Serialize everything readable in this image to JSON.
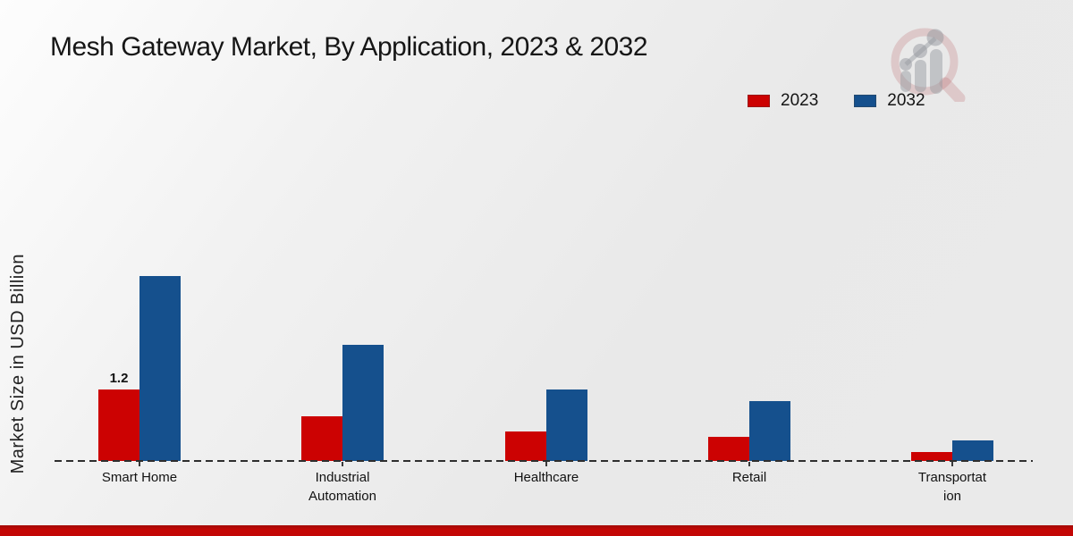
{
  "page": {
    "title": "Mesh Gateway Market, By Application, 2023 & 2032"
  },
  "y_axis": {
    "label": "Market Size in USD Billion"
  },
  "legend": {
    "items": [
      {
        "label": "2023",
        "color": "#cc0202"
      },
      {
        "label": "2032",
        "color": "#15508d"
      }
    ]
  },
  "colors": {
    "series_2023": "#cc0202",
    "series_2032": "#15508d",
    "footer_accent": "#c20605",
    "axis_dash": "#2e2e2e"
  },
  "watermark": {
    "name": "magnifier-bar-chart-logo"
  },
  "chart_data": {
    "type": "bar",
    "title": "Mesh Gateway Market, By Application, 2023 & 2032",
    "xlabel": "",
    "ylabel": "Market Size in USD Billion",
    "categories": [
      "Smart Home",
      "Industrial Automation",
      "Healthcare",
      "Retail",
      "Transportation"
    ],
    "category_label_lines": [
      [
        "Smart Home"
      ],
      [
        "Industrial",
        "Automation"
      ],
      [
        "Healthcare"
      ],
      [
        "Retail"
      ],
      [
        "Transportat",
        "ion"
      ]
    ],
    "series": [
      {
        "name": "2023",
        "color": "#cc0202",
        "values": [
          1.2,
          0.75,
          0.5,
          0.4,
          0.15
        ]
      },
      {
        "name": "2032",
        "color": "#15508d",
        "values": [
          3.1,
          1.95,
          1.2,
          1.0,
          0.35
        ]
      }
    ],
    "point_labels": [
      {
        "series_index": 0,
        "category_index": 0,
        "text": "1.2"
      }
    ],
    "ylim": [
      0,
      3.5
    ],
    "grid": false,
    "legend_position": "top-right",
    "axis_style": "dashed-baseline-only"
  }
}
